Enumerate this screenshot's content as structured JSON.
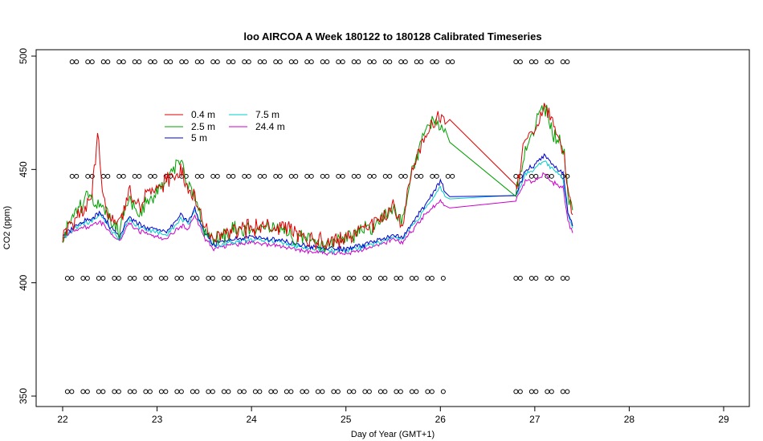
{
  "chart_data": {
    "type": "line",
    "title": "loo AIRCOA A  Week 180122 to 180128  Calibrated Timeseries",
    "xlabel": "Day of Year (GMT+1)",
    "ylabel": "CO2 (ppm)",
    "xlim": [
      22,
      29
    ],
    "ylim": [
      350,
      500
    ],
    "xticks": [
      "22",
      "23",
      "24",
      "25",
      "26",
      "27",
      "28",
      "29"
    ],
    "yticks": [
      "350",
      "400",
      "450",
      "500"
    ],
    "legend_position": "top-left",
    "series": [
      {
        "name": "0.4 m",
        "color": "#dd0000",
        "x": [
          22.0,
          22.2,
          22.3,
          22.37,
          22.42,
          22.48,
          22.6,
          22.7,
          22.8,
          22.9,
          23.1,
          23.25,
          23.33,
          23.4,
          23.5,
          23.6,
          23.8,
          24.0,
          24.3,
          24.6,
          24.8,
          25.0,
          25.3,
          25.5,
          25.6,
          25.7,
          25.8,
          25.9,
          26.0,
          26.05,
          26.1,
          26.8,
          26.9,
          27.0,
          27.1,
          27.2,
          27.3,
          27.35,
          27.4
        ],
        "y": [
          421,
          432,
          435,
          465,
          440,
          430,
          425,
          440,
          433,
          440,
          445,
          450,
          440,
          438,
          425,
          418,
          423,
          424,
          425,
          419,
          418,
          420,
          426,
          433,
          426,
          450,
          460,
          470,
          472,
          470,
          472,
          442,
          462,
          468,
          478,
          470,
          458,
          440,
          430
        ]
      },
      {
        "name": "2.5 m",
        "color": "#00a000",
        "x": [
          22.0,
          22.2,
          22.3,
          22.4,
          22.5,
          22.6,
          22.7,
          22.8,
          22.9,
          23.1,
          23.25,
          23.33,
          23.4,
          23.5,
          23.6,
          23.8,
          24.0,
          24.3,
          24.6,
          24.8,
          25.0,
          25.3,
          25.5,
          25.6,
          25.7,
          25.8,
          25.9,
          26.0,
          26.05,
          26.1,
          26.8,
          26.9,
          27.0,
          27.1,
          27.2,
          27.3,
          27.35,
          27.4
        ],
        "y": [
          421,
          435,
          438,
          432,
          428,
          422,
          438,
          432,
          435,
          445,
          455,
          443,
          438,
          422,
          418,
          423,
          424,
          424,
          418,
          417,
          420,
          425,
          432,
          427,
          448,
          462,
          472,
          470,
          468,
          462,
          440,
          458,
          470,
          478,
          465,
          460,
          440,
          432
        ]
      },
      {
        "name": "5 m",
        "color": "#0000cc",
        "x": [
          22.0,
          22.2,
          22.3,
          22.4,
          22.5,
          22.6,
          22.7,
          22.8,
          22.9,
          23.1,
          23.25,
          23.33,
          23.4,
          23.5,
          23.6,
          23.8,
          24.0,
          24.3,
          24.6,
          24.8,
          25.0,
          25.3,
          25.5,
          25.6,
          25.7,
          25.8,
          25.9,
          26.0,
          26.05,
          26.1,
          26.8,
          26.9,
          27.0,
          27.1,
          27.2,
          27.3,
          27.35,
          27.4
        ],
        "y": [
          421,
          427,
          428,
          431,
          425,
          420,
          429,
          426,
          424,
          422,
          430,
          427,
          433,
          423,
          417,
          419,
          420,
          419,
          416,
          415,
          415,
          418,
          421,
          420,
          426,
          432,
          438,
          445,
          440,
          438,
          438,
          450,
          452,
          456,
          452,
          448,
          432,
          425
        ]
      },
      {
        "name": "7.5 m",
        "color": "#00cccc",
        "x": [
          22.0,
          22.2,
          22.3,
          22.4,
          22.5,
          22.6,
          22.7,
          22.8,
          22.9,
          23.1,
          23.25,
          23.33,
          23.4,
          23.5,
          23.6,
          23.8,
          24.0,
          24.3,
          24.6,
          24.8,
          25.0,
          25.3,
          25.5,
          25.6,
          25.7,
          25.8,
          25.9,
          26.0,
          26.05,
          26.1,
          26.8,
          26.9,
          27.0,
          27.1,
          27.2,
          27.3,
          27.35,
          27.4
        ],
        "y": [
          420,
          426,
          427,
          430,
          424,
          419,
          428,
          425,
          423,
          421,
          428,
          426,
          432,
          422,
          416,
          418,
          419,
          418,
          415,
          414,
          414,
          417,
          420,
          419,
          425,
          430,
          436,
          442,
          438,
          437,
          438,
          448,
          450,
          454,
          450,
          446,
          430,
          424
        ]
      },
      {
        "name": "24.4 m",
        "color": "#cc00cc",
        "x": [
          22.0,
          22.2,
          22.3,
          22.4,
          22.5,
          22.6,
          22.7,
          22.8,
          22.9,
          23.1,
          23.25,
          23.33,
          23.4,
          23.5,
          23.6,
          23.8,
          24.0,
          24.3,
          24.6,
          24.8,
          25.0,
          25.3,
          25.5,
          25.6,
          25.7,
          25.8,
          25.9,
          26.0,
          26.05,
          26.1,
          26.8,
          26.9,
          27.0,
          27.1,
          27.2,
          27.3,
          27.35,
          27.4
        ],
        "y": [
          420,
          424,
          425,
          427,
          422,
          418,
          426,
          423,
          421,
          419,
          425,
          424,
          430,
          420,
          415,
          417,
          418,
          416,
          414,
          413,
          413,
          416,
          419,
          418,
          423,
          428,
          433,
          436,
          434,
          433,
          437,
          445,
          445,
          448,
          444,
          442,
          428,
          422
        ]
      }
    ],
    "marker_rows": [
      {
        "y": 497.5,
        "segments": [
          [
            22.1,
            26.15
          ],
          [
            26.8,
            27.35
          ]
        ]
      },
      {
        "y": 447,
        "segments": [
          [
            22.1,
            26.15
          ],
          [
            26.8,
            27.35
          ]
        ]
      },
      {
        "y": 402,
        "segments": [
          [
            22.05,
            26.05
          ],
          [
            26.8,
            27.45
          ]
        ]
      },
      {
        "y": 352,
        "segments": [
          [
            22.05,
            26.05
          ],
          [
            26.8,
            27.4
          ]
        ]
      }
    ]
  }
}
